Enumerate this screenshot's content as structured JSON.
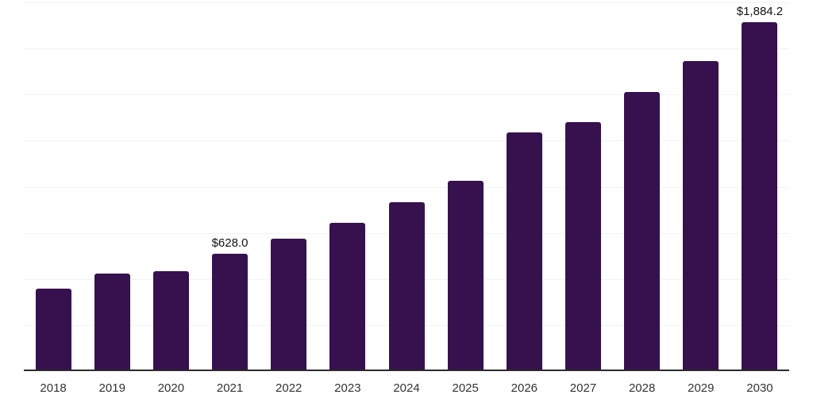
{
  "chart_data": {
    "type": "bar",
    "title": "",
    "xlabel": "",
    "ylabel": "",
    "categories": [
      "2018",
      "2019",
      "2020",
      "2021",
      "2022",
      "2023",
      "2024",
      "2025",
      "2026",
      "2027",
      "2028",
      "2029",
      "2030"
    ],
    "values": [
      440,
      521,
      535,
      628.0,
      710,
      795,
      906,
      1025,
      1286,
      1342,
      1504,
      1675,
      1884.2
    ],
    "data_labels": [
      "",
      "",
      "",
      "$628.0",
      "",
      "",
      "",
      "",
      "",
      "",
      "",
      "",
      "$1,884.2"
    ],
    "ylim": [
      0,
      2000
    ],
    "gridline_interval": 250,
    "grid": true,
    "legend": "none",
    "colors": {
      "bar": "#36114E",
      "gridline": "#f2f2f2",
      "axis_line": "#2b2b2b",
      "tick_label_text": "#333333",
      "data_label_text": "#111111",
      "background": "#ffffff"
    }
  }
}
